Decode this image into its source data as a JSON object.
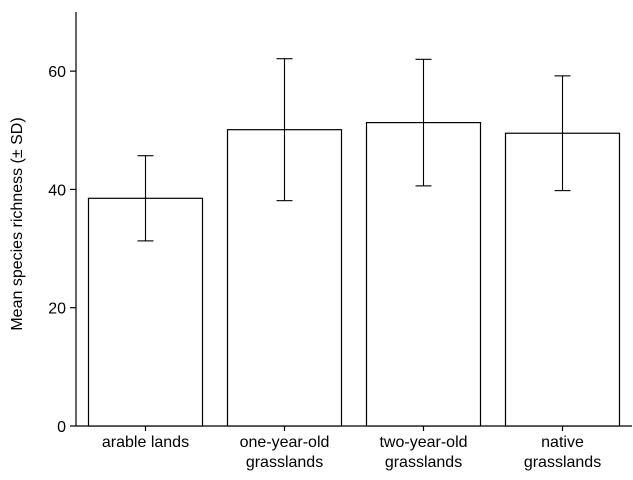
{
  "chart_data": {
    "type": "bar",
    "title": "",
    "xlabel": "",
    "ylabel": "Mean species richness (± SD)",
    "ylim": [
      0,
      70
    ],
    "yticks": [
      0,
      20,
      40,
      60
    ],
    "grid": false,
    "legend": "none",
    "categories": [
      [
        "arable lands"
      ],
      [
        "one-year-old",
        "grasslands"
      ],
      [
        "two-year-old",
        "grasslands"
      ],
      [
        "native",
        "grasslands"
      ]
    ],
    "values": [
      38.5,
      50.1,
      51.3,
      49.5
    ],
    "errors": [
      7.2,
      12.0,
      10.7,
      9.7
    ],
    "colors": {
      "bar_fill": "#ffffff",
      "stroke": "#000000"
    }
  }
}
